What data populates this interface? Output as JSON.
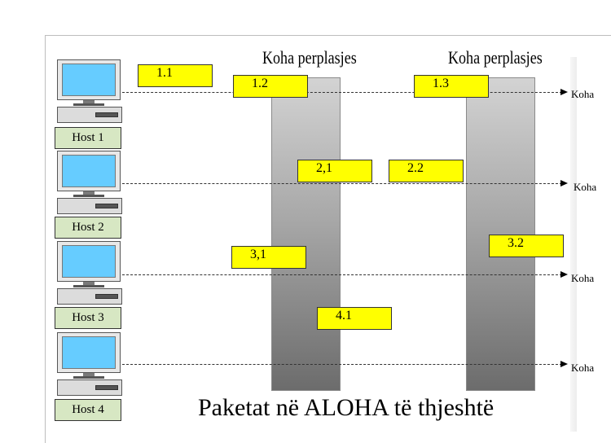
{
  "collision_label": "Koha perplasjes",
  "time_label": "Koha",
  "hosts": [
    {
      "label": "Host 1"
    },
    {
      "label": "Host 2"
    },
    {
      "label": "Host 3"
    },
    {
      "label": "Host 4"
    }
  ],
  "packets": {
    "p1_1": "1.1",
    "p1_2": "1.2",
    "p1_3": "1.3",
    "p2_1": "2,1",
    "p2_2": "2.2",
    "p3_1": "3,1",
    "p3_2": "3.2",
    "p4_1": "4.1"
  },
  "caption": "Paketat në ALOHA të thjeshtë",
  "colors": {
    "packet_fill": "#ffff00",
    "host_label_fill": "#d7e7c3",
    "screen": "#66ccff"
  }
}
